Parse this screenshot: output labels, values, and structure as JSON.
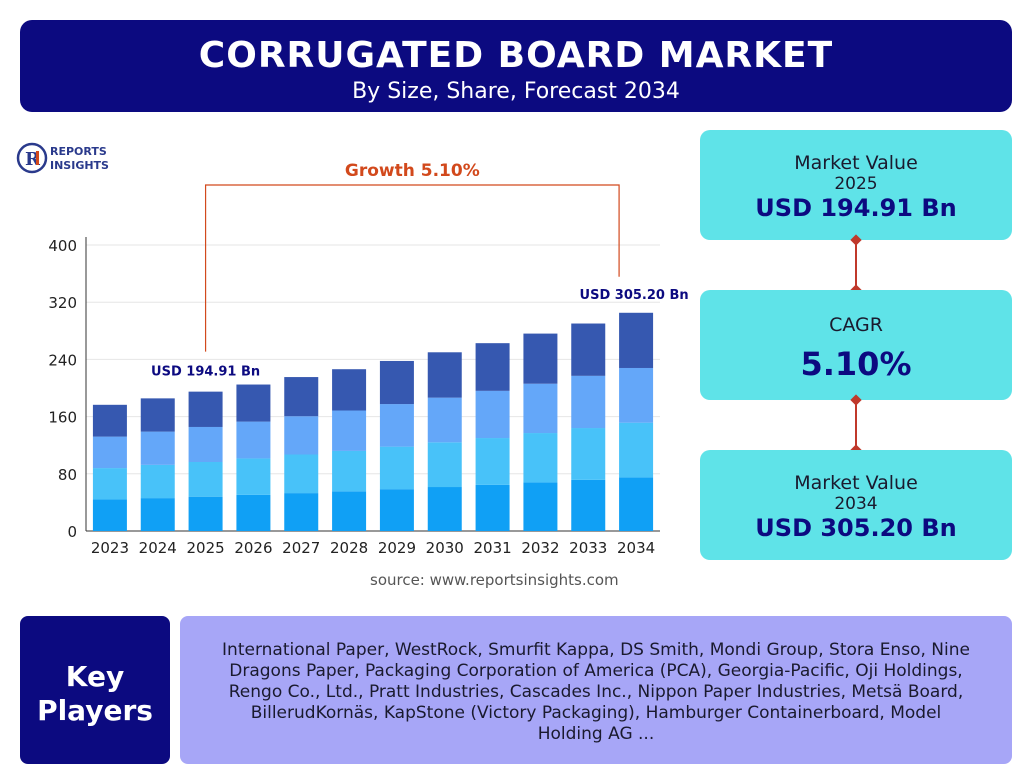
{
  "header": {
    "title": "CORRUGATED BOARD MARKET",
    "subtitle": "By Size, Share, Forecast 2034"
  },
  "logo": {
    "line1": "REPORTS",
    "line2": "INSIGHTS"
  },
  "source": "source: www.reportsinsights.com",
  "stats": {
    "value_2025_label": "Market Value",
    "value_2025_year": "2025",
    "value_2025": "USD 194.91 Bn",
    "cagr_label": "CAGR",
    "cagr": "5.10%",
    "value_2034_label": "Market Value",
    "value_2034_year": "2034",
    "value_2034": "USD 305.20 Bn"
  },
  "key_players": {
    "label_line1": "Key",
    "label_line2": "Players",
    "text": "International Paper, WestRock, Smurfit Kappa, DS Smith, Mondi Group, Stora Enso, Nine Dragons Paper, Packaging Corporation of America (PCA), Georgia-Pacific, Oji Holdings, Rengo Co., Ltd., Pratt Industries, Cascades Inc., Nippon Paper Industries, Metsä Board, BillerudKornäs, KapStone (Victory Packaging), Hamburger Containerboard, Model Holding AG ..."
  },
  "colors": {
    "header_bg": "#0c0a80",
    "stat_bg": "#5fe3e8",
    "key_players_bg": "#a7a6f7",
    "growth": "#d2491c",
    "seg1": "#10a0f5",
    "seg2": "#48c2f9",
    "seg3": "#64a7f9",
    "seg4": "#3658b0"
  },
  "chart_data": {
    "type": "bar",
    "stacked": true,
    "categories": [
      "2023",
      "2024",
      "2025",
      "2026",
      "2027",
      "2028",
      "2029",
      "2030",
      "2031",
      "2032",
      "2033",
      "2034"
    ],
    "totals": [
      176.5,
      185.5,
      194.91,
      204.85,
      215.3,
      226.28,
      237.82,
      249.95,
      262.7,
      276.1,
      290.18,
      305.2
    ],
    "series": [
      {
        "values": [
          44,
          46,
          48,
          50.5,
          53,
          55.5,
          58.5,
          61.5,
          64.5,
          68,
          71.5,
          75
        ]
      },
      {
        "values": [
          44,
          46.5,
          48.5,
          51,
          54,
          56.5,
          59.5,
          62.5,
          65.5,
          69,
          72.5,
          76.5
        ]
      },
      {
        "values": [
          44,
          46.5,
          49,
          51.5,
          53.5,
          56.5,
          59.5,
          62.5,
          66,
          69,
          73,
          76.5
        ]
      },
      {
        "values": [
          44.5,
          46.5,
          49.41,
          51.85,
          54.8,
          57.78,
          60.32,
          63.45,
          66.7,
          70.1,
          73.18,
          77.2
        ]
      }
    ],
    "ylim": [
      0,
      400
    ],
    "yticks": [
      0,
      80,
      160,
      240,
      320,
      400
    ],
    "grid": true,
    "annotations": {
      "growth_label": "Growth 5.10%",
      "label_2025": "USD 194.91 Bn",
      "label_2034": "USD 305.20 Bn"
    }
  }
}
